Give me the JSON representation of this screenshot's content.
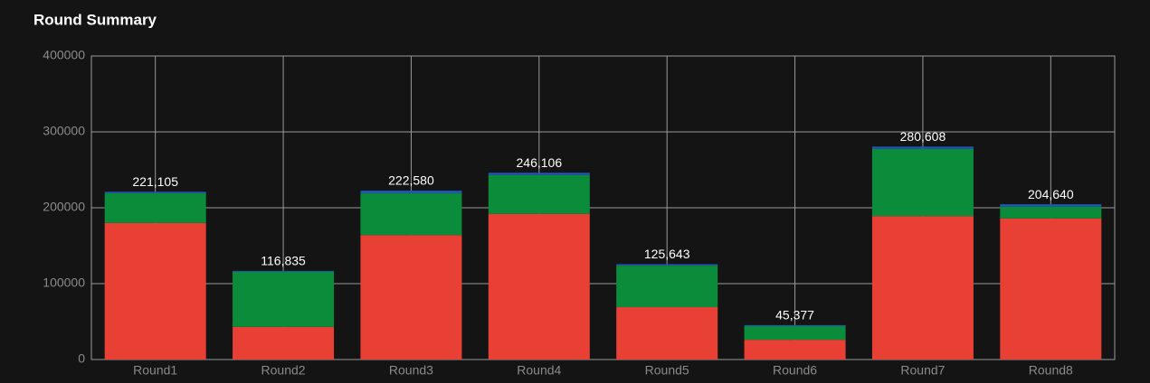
{
  "chart_data": {
    "type": "stacked_bar",
    "title": "Round Summary",
    "categories": [
      "Round1",
      "Round2",
      "Round3",
      "Round4",
      "Round5",
      "Round6",
      "Round7",
      "Round8"
    ],
    "series": [
      {
        "color": "#e84034",
        "values": [
          180000,
          43000,
          164000,
          192000,
          69000,
          26000,
          189000,
          186000
        ]
      },
      {
        "color": "#0a8c3a",
        "values": [
          39000,
          72500,
          55000,
          51000,
          54700,
          18000,
          88500,
          15500
        ]
      },
      {
        "color": "#1f56b0",
        "values": [
          2105,
          1335,
          3580,
          3106,
          1943,
          1377,
          3108,
          3140
        ]
      }
    ],
    "totals": [
      221105,
      116835,
      222580,
      246106,
      125643,
      45377,
      280608,
      204640
    ],
    "total_labels": [
      "221,105",
      "116,835",
      "222,580",
      "246,106",
      "125,643",
      "45,377",
      "280,608",
      "204,640"
    ],
    "ylim": [
      0,
      400000
    ],
    "yticks": [
      0,
      100000,
      200000,
      300000,
      400000
    ],
    "grid": true
  }
}
